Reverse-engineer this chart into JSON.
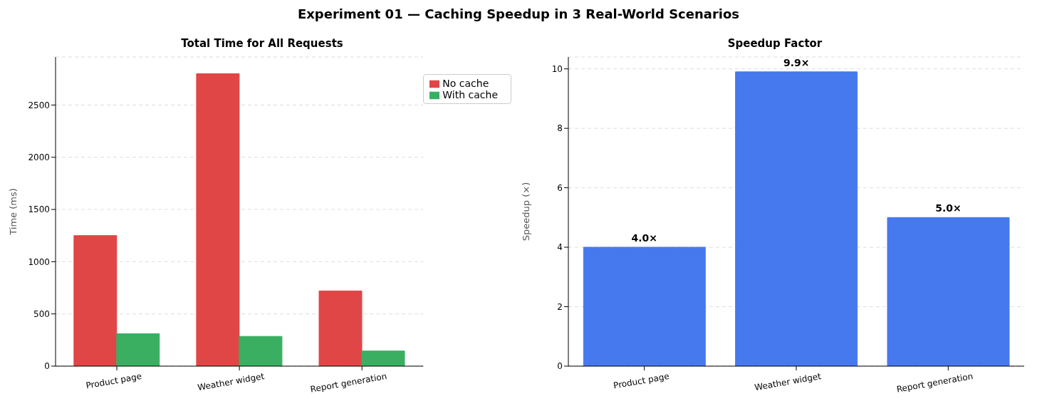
{
  "chart_data": [
    {
      "type": "other",
      "title": "Experiment 01 — Caching Speedup in 3 Real-World Scenarios"
    },
    {
      "type": "bar",
      "title": "Total Time for All Requests",
      "ylabel": "Time (ms)",
      "categories": [
        "Product page",
        "Weather widget",
        "Report generation"
      ],
      "series": [
        {
          "name": "No cache",
          "color": "#e04646",
          "values": [
            1250,
            2800,
            720
          ]
        },
        {
          "name": "With cache",
          "color": "#3aaf62",
          "values": [
            310,
            285,
            145
          ]
        }
      ],
      "ylim": [
        0,
        2960
      ],
      "yticks": [
        0,
        500,
        1000,
        1500,
        2000,
        2500
      ],
      "grid": "y",
      "legend": "top right"
    },
    {
      "type": "bar",
      "title": "Speedup Factor",
      "ylabel": "Speedup (×)",
      "categories": [
        "Product page",
        "Weather widget",
        "Report generation"
      ],
      "values": [
        4.0,
        9.9,
        5.0
      ],
      "color": "#4779ee",
      "value_labels": [
        "4.0×",
        "9.9×",
        "5.0×"
      ],
      "ylim": [
        0,
        10.4
      ],
      "yticks": [
        0,
        2,
        4,
        6,
        8,
        10
      ],
      "grid": "y"
    }
  ]
}
